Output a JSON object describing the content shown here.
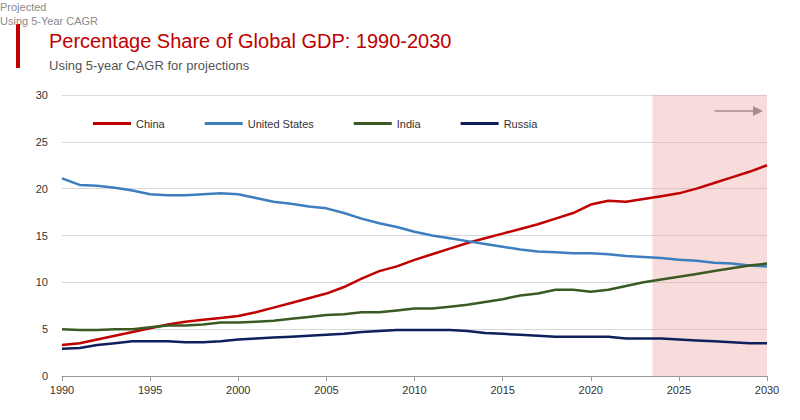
{
  "chart_data": {
    "type": "line",
    "title": "Percentage Share of Global GDP: 1990-2030",
    "subtitle": "Using 5-year CAGR for projections",
    "x": [
      1990,
      1991,
      1992,
      1993,
      1994,
      1995,
      1996,
      1997,
      1998,
      1999,
      2000,
      2001,
      2002,
      2003,
      2004,
      2005,
      2006,
      2007,
      2008,
      2009,
      2010,
      2011,
      2012,
      2013,
      2014,
      2015,
      2016,
      2017,
      2018,
      2019,
      2020,
      2021,
      2022,
      2023,
      2024,
      2025,
      2026,
      2027,
      2028,
      2029,
      2030
    ],
    "series": [
      {
        "name": "China",
        "color": "#c00000",
        "marker": "none",
        "line_style": "solid",
        "values": [
          3.3,
          3.5,
          3.9,
          4.3,
          4.7,
          5.1,
          5.5,
          5.8,
          6.0,
          6.2,
          6.4,
          6.8,
          7.3,
          7.8,
          8.3,
          8.8,
          9.5,
          10.4,
          11.2,
          11.7,
          12.4,
          13.0,
          13.6,
          14.2,
          14.7,
          15.2,
          15.7,
          16.2,
          16.8,
          17.4,
          18.3,
          18.7,
          18.6,
          18.9,
          19.2,
          19.5,
          20.0,
          20.6,
          21.2,
          21.8,
          22.5
        ]
      },
      {
        "name": "United States",
        "color": "#3d7ebf",
        "marker": "none",
        "line_style": "solid",
        "values": [
          21.1,
          20.4,
          20.3,
          20.1,
          19.8,
          19.4,
          19.3,
          19.3,
          19.4,
          19.5,
          19.4,
          19.0,
          18.6,
          18.4,
          18.1,
          17.9,
          17.4,
          16.8,
          16.3,
          15.9,
          15.4,
          15.0,
          14.7,
          14.4,
          14.1,
          13.8,
          13.5,
          13.3,
          13.2,
          13.1,
          13.1,
          13.0,
          12.8,
          12.7,
          12.6,
          12.4,
          12.3,
          12.1,
          12.0,
          11.8,
          11.7
        ]
      },
      {
        "name": "India",
        "color": "#3b5a23",
        "marker": "none",
        "line_style": "solid",
        "values": [
          5.0,
          4.9,
          4.9,
          5.0,
          5.0,
          5.2,
          5.4,
          5.4,
          5.5,
          5.7,
          5.7,
          5.8,
          5.9,
          6.1,
          6.3,
          6.5,
          6.6,
          6.8,
          6.8,
          7.0,
          7.2,
          7.2,
          7.4,
          7.6,
          7.9,
          8.2,
          8.6,
          8.8,
          9.2,
          9.2,
          9.0,
          9.2,
          9.6,
          10.0,
          10.3,
          10.6,
          10.9,
          11.2,
          11.5,
          11.8,
          12.0
        ]
      },
      {
        "name": "Russia",
        "color": "#0e1f5b",
        "marker": "none",
        "line_style": "solid",
        "values": [
          2.9,
          3.0,
          3.3,
          3.5,
          3.7,
          3.7,
          3.7,
          3.6,
          3.6,
          3.7,
          3.9,
          4.0,
          4.1,
          4.2,
          4.3,
          4.4,
          4.5,
          4.7,
          4.8,
          4.9,
          4.9,
          4.9,
          4.9,
          4.8,
          4.6,
          4.5,
          4.4,
          4.3,
          4.2,
          4.2,
          4.2,
          4.2,
          4.0,
          4.0,
          4.0,
          3.9,
          3.8,
          3.7,
          3.6,
          3.5,
          3.5
        ]
      }
    ],
    "xlim": [
      1990,
      2030
    ],
    "xticks": [
      1990,
      1995,
      2000,
      2005,
      2010,
      2015,
      2020,
      2025,
      2030
    ],
    "ylim": [
      0,
      30
    ],
    "yticks": [
      0,
      5,
      10,
      15,
      20,
      25,
      30
    ],
    "grid": true,
    "legend": "top-left",
    "annotations": [
      {
        "text": [
          "Projected",
          "Using 5-Year CAGR"
        ],
        "x": 2023.5,
        "x_end": 2030
      }
    ]
  }
}
